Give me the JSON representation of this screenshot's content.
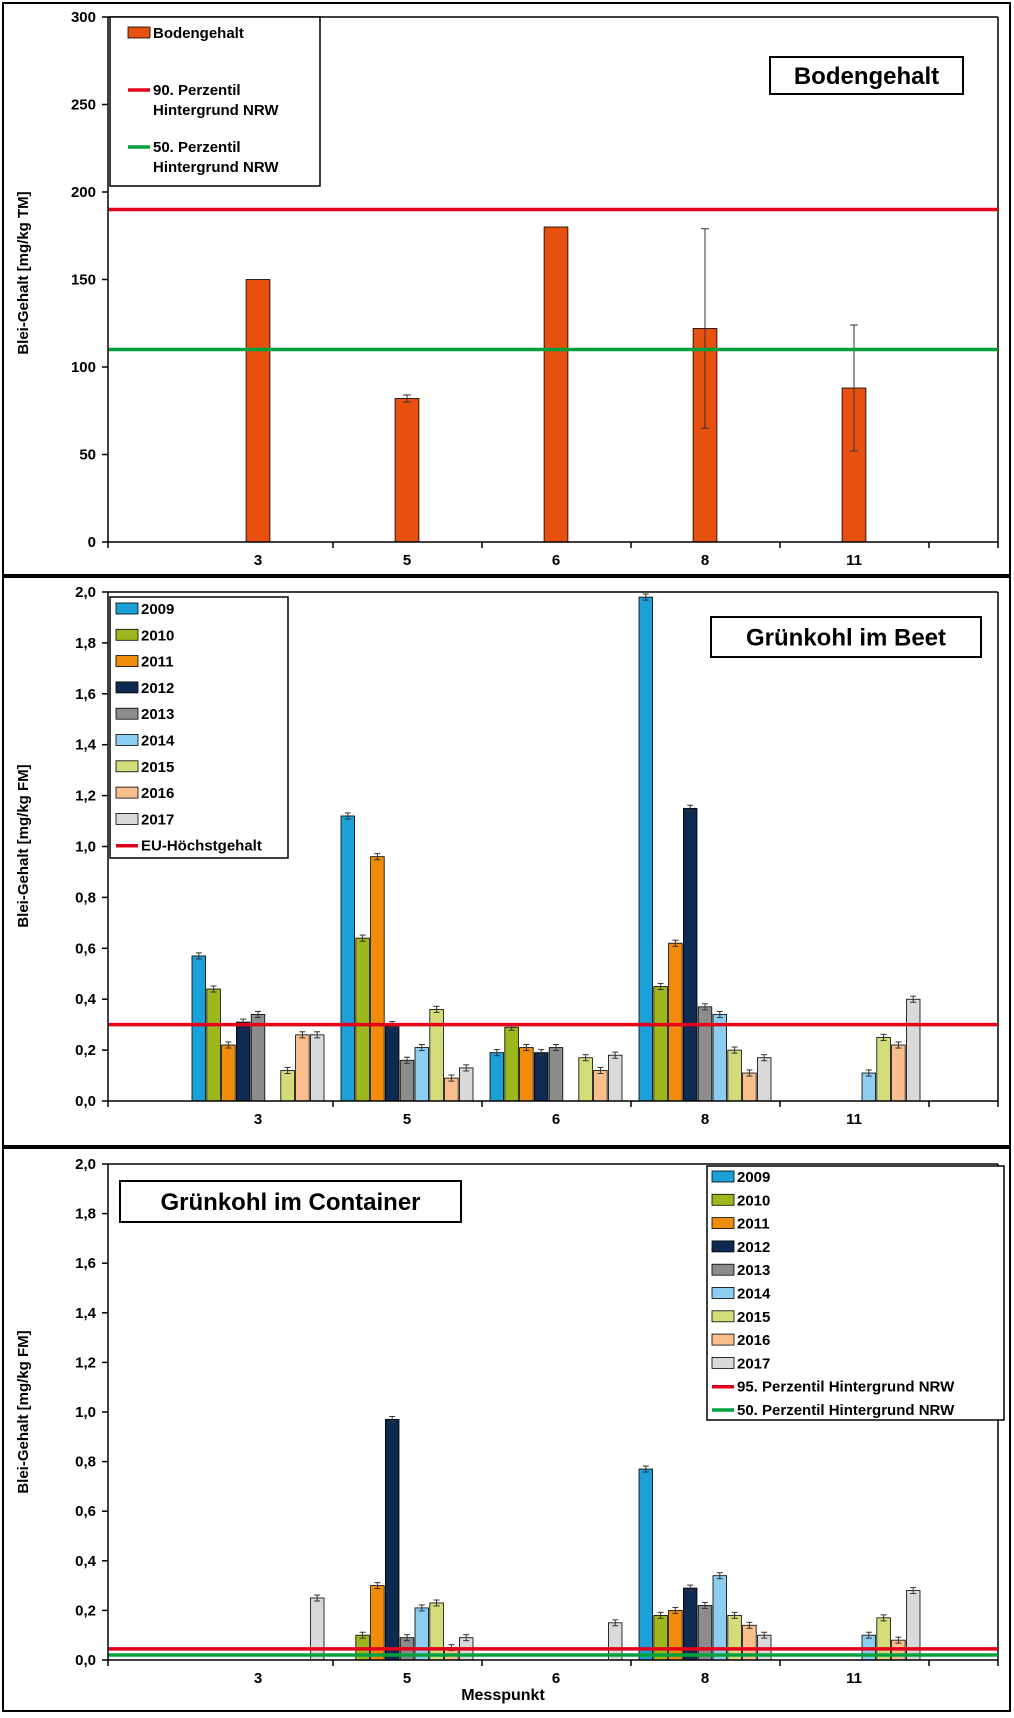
{
  "chart_data": [
    {
      "type": "bar",
      "title": "Bodengehalt",
      "xlabel": "",
      "ylabel": "Blei-Gehalt [mg/kg TM]",
      "categories": [
        "3",
        "5",
        "6",
        "8",
        "11"
      ],
      "ylim": [
        0,
        300
      ],
      "yticks": [
        "0",
        "50",
        "100",
        "150",
        "200",
        "250",
        "300"
      ],
      "legend_position": "top-left",
      "series": [
        {
          "name": "Bodengehalt",
          "color": "#E8500F",
          "values": [
            150,
            82,
            180,
            122,
            88
          ],
          "errors": [
            0,
            2,
            0,
            57,
            36
          ]
        }
      ],
      "reference_lines": [
        {
          "name": "90. Perzentil\nHintergrund NRW",
          "color": "#E3001B",
          "value": 190
        },
        {
          "name": "50. Perzentil\nHintergrund NRW",
          "color": "#00A03E",
          "value": 110
        }
      ]
    },
    {
      "type": "bar",
      "title": "Grünkohl im Beet",
      "xlabel": "",
      "ylabel": "Blei-Gehalt [mg/kg FM]",
      "categories": [
        "3",
        "5",
        "6",
        "8",
        "11"
      ],
      "ylim": [
        0,
        2.0
      ],
      "yticks": [
        "0,0",
        "0,2",
        "0,4",
        "0,6",
        "0,8",
        "1,0",
        "1,2",
        "1,4",
        "1,6",
        "1,8",
        "2,0"
      ],
      "legend_position": "top-left",
      "series": [
        {
          "name": "2009",
          "color": "#1BA0D8",
          "values": [
            0.57,
            1.12,
            0.19,
            1.98,
            null
          ]
        },
        {
          "name": "2010",
          "color": "#9CB81C",
          "values": [
            0.44,
            0.64,
            0.29,
            0.45,
            null
          ]
        },
        {
          "name": "2011",
          "color": "#F08C0A",
          "values": [
            0.22,
            0.96,
            0.21,
            0.62,
            null
          ]
        },
        {
          "name": "2012",
          "color": "#0F2A52",
          "values": [
            0.31,
            0.3,
            0.19,
            1.15,
            null
          ]
        },
        {
          "name": "2013",
          "color": "#8C8C8C",
          "values": [
            0.34,
            0.16,
            0.21,
            0.37,
            null
          ]
        },
        {
          "name": "2014",
          "color": "#8DCDF0",
          "values": [
            null,
            0.21,
            null,
            0.34,
            0.11
          ]
        },
        {
          "name": "2015",
          "color": "#D4DC7A",
          "values": [
            0.12,
            0.36,
            0.17,
            0.2,
            0.25
          ]
        },
        {
          "name": "2016",
          "color": "#F8BE8C",
          "values": [
            0.26,
            0.09,
            0.12,
            0.11,
            0.22
          ]
        },
        {
          "name": "2017",
          "color": "#D9D9D9",
          "values": [
            0.26,
            0.13,
            0.18,
            0.17,
            0.4
          ]
        }
      ],
      "reference_lines": [
        {
          "name": "EU-Höchstgehalt",
          "color": "#E3001B",
          "value": 0.3
        }
      ]
    },
    {
      "type": "bar",
      "title": "Grünkohl im Container",
      "xlabel": "Messpunkt",
      "ylabel": "Blei-Gehalt [mg/kg FM]",
      "categories": [
        "3",
        "5",
        "6",
        "8",
        "11"
      ],
      "ylim": [
        0,
        2.0
      ],
      "yticks": [
        "0,0",
        "0,2",
        "0,4",
        "0,6",
        "0,8",
        "1,0",
        "1,2",
        "1,4",
        "1,6",
        "1,8",
        "2,0"
      ],
      "legend_position": "top-right",
      "series": [
        {
          "name": "2009",
          "color": "#1BA0D8",
          "values": [
            null,
            null,
            null,
            0.77,
            null
          ]
        },
        {
          "name": "2010",
          "color": "#9CB81C",
          "values": [
            null,
            0.1,
            null,
            0.18,
            null
          ]
        },
        {
          "name": "2011",
          "color": "#F08C0A",
          "values": [
            null,
            0.3,
            null,
            0.2,
            null
          ]
        },
        {
          "name": "2012",
          "color": "#0F2A52",
          "values": [
            null,
            0.97,
            null,
            0.29,
            null
          ]
        },
        {
          "name": "2013",
          "color": "#8C8C8C",
          "values": [
            null,
            0.09,
            null,
            0.22,
            null
          ]
        },
        {
          "name": "2014",
          "color": "#8DCDF0",
          "values": [
            null,
            0.21,
            null,
            0.34,
            0.1
          ]
        },
        {
          "name": "2015",
          "color": "#D4DC7A",
          "values": [
            null,
            0.23,
            null,
            0.18,
            0.17
          ]
        },
        {
          "name": "2016",
          "color": "#F8BE8C",
          "values": [
            null,
            0.05,
            null,
            0.14,
            0.08
          ]
        },
        {
          "name": "2017",
          "color": "#D9D9D9",
          "values": [
            0.25,
            0.09,
            0.15,
            0.1,
            0.28
          ]
        }
      ],
      "reference_lines": [
        {
          "name": "95. Perzentil Hintergrund NRW",
          "color": "#E3001B",
          "value": 0.045
        },
        {
          "name": "50. Perzentil Hintergrund NRW",
          "color": "#00A03E",
          "value": 0.02
        }
      ]
    }
  ]
}
